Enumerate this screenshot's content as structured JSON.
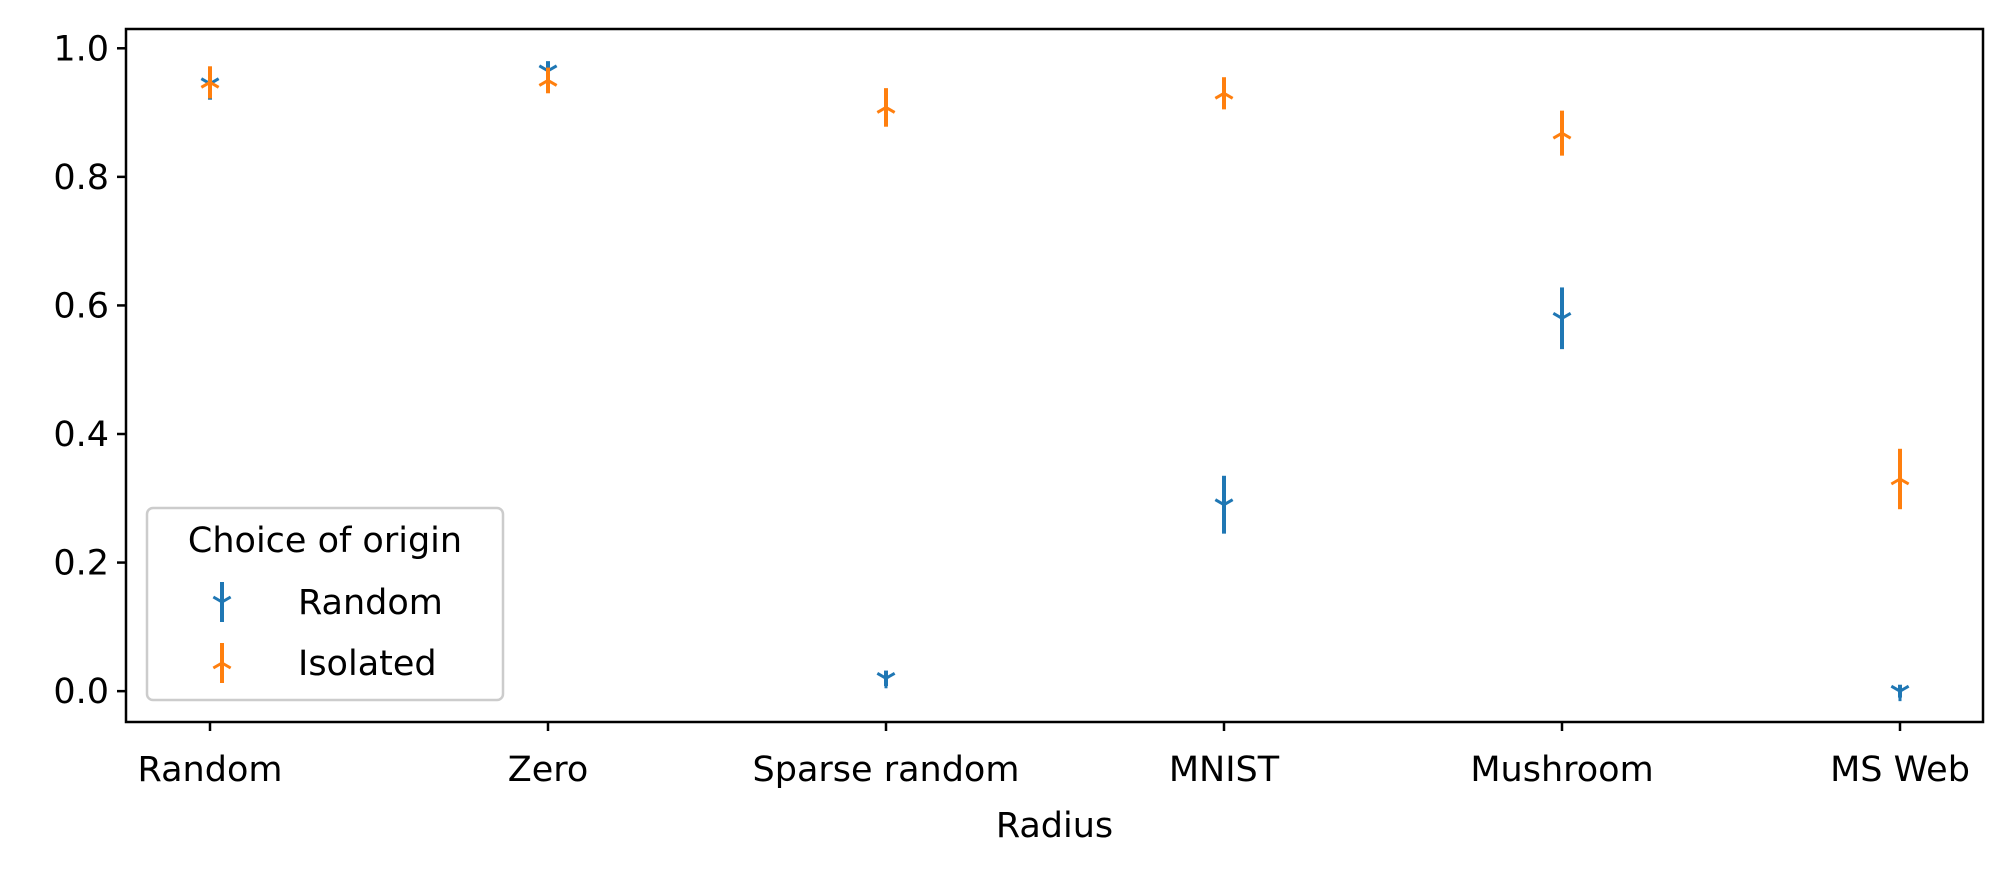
{
  "chart_data": {
    "type": "scatter",
    "title": "",
    "xlabel": "Radius",
    "ylabel": "",
    "categories": [
      "Random",
      "Zero",
      "Sparse random",
      "MNIST",
      "Mushroom",
      "MS Web"
    ],
    "ylim": [
      -0.048,
      1.03
    ],
    "yticks": [
      "0.0",
      "0.2",
      "0.4",
      "0.6",
      "0.8",
      "1.0"
    ],
    "grid": false,
    "legend": {
      "title": "Choice of origin",
      "placement": "lower-left"
    },
    "series": [
      {
        "name": "Random",
        "color": "#1f77b4",
        "marker": "tri-down",
        "values": [
          0.945,
          0.965,
          0.02,
          0.29,
          0.58,
          0.0
        ],
        "error": [
          0.025,
          0.015,
          0.012,
          0.045,
          0.048,
          0.01
        ]
      },
      {
        "name": "Isolated",
        "color": "#ff7f0e",
        "marker": "tri-up",
        "values": [
          0.947,
          0.95,
          0.908,
          0.93,
          0.868,
          0.33
        ],
        "error": [
          0.025,
          0.02,
          0.03,
          0.025,
          0.035,
          0.047
        ]
      }
    ]
  }
}
